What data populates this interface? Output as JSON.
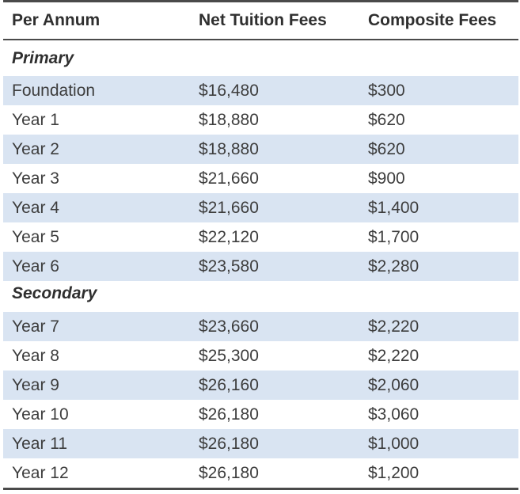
{
  "headers": {
    "per_annum": "Per Annum",
    "net_tuition": "Net Tuition Fees",
    "composite": "Composite Fees"
  },
  "sections": [
    {
      "title": "Primary",
      "rows": [
        {
          "year": "Foundation",
          "net_tuition": "$16,480",
          "composite": "$300"
        },
        {
          "year": "Year 1",
          "net_tuition": "$18,880",
          "composite": "$620"
        },
        {
          "year": "Year 2",
          "net_tuition": "$18,880",
          "composite": "$620"
        },
        {
          "year": "Year 3",
          "net_tuition": "$21,660",
          "composite": "$900"
        },
        {
          "year": "Year 4",
          "net_tuition": "$21,660",
          "composite": "$1,400"
        },
        {
          "year": "Year 5",
          "net_tuition": "$22,120",
          "composite": "$1,700"
        },
        {
          "year": "Year 6",
          "net_tuition": "$23,580",
          "composite": "$2,280"
        }
      ]
    },
    {
      "title": "Secondary",
      "rows": [
        {
          "year": "Year 7",
          "net_tuition": "$23,660",
          "composite": "$2,220"
        },
        {
          "year": "Year 8",
          "net_tuition": "$25,300",
          "composite": "$2,220"
        },
        {
          "year": "Year 9",
          "net_tuition": "$26,160",
          "composite": "$2,060"
        },
        {
          "year": "Year 10",
          "net_tuition": "$26,180",
          "composite": "$3,060"
        },
        {
          "year": "Year 11",
          "net_tuition": "$26,180",
          "composite": "$1,000"
        },
        {
          "year": "Year 12",
          "net_tuition": "$26,180",
          "composite": "$1,200"
        }
      ]
    }
  ],
  "colors": {
    "row_shade": "#d9e4f2",
    "rule": "#4a4a4a"
  }
}
